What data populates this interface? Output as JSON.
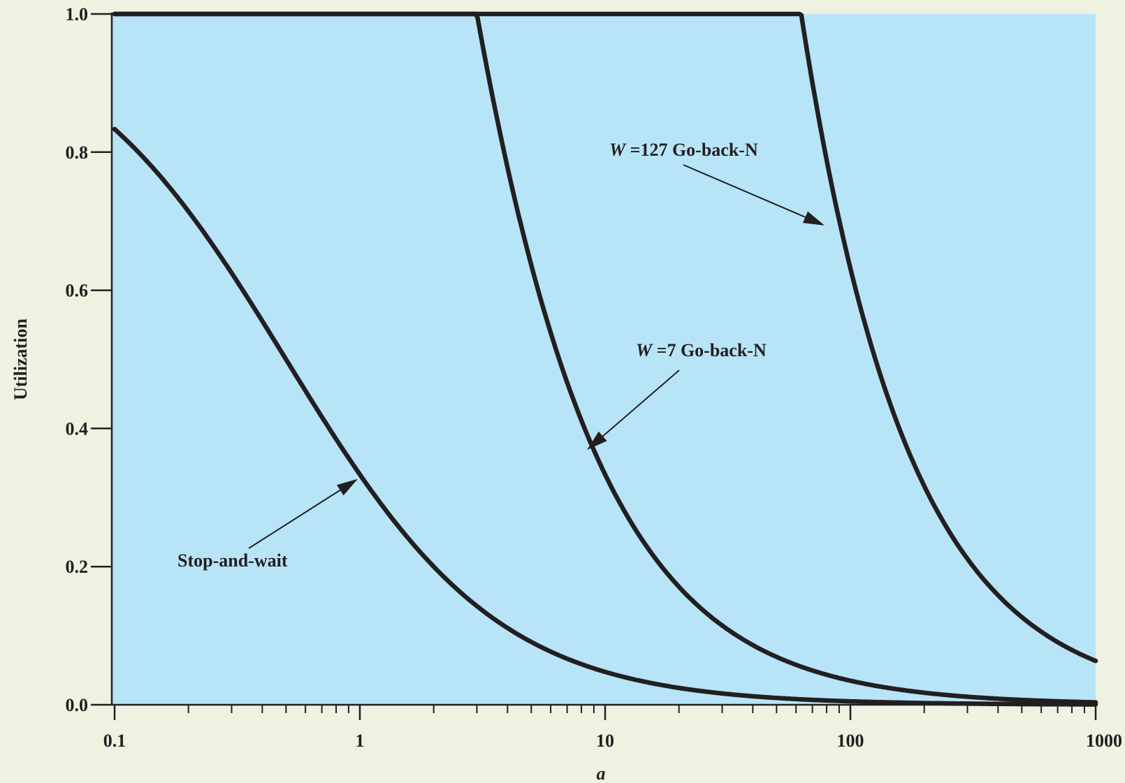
{
  "chart_data": {
    "type": "line",
    "xscale": "log",
    "xlim": [
      0.1,
      1000
    ],
    "ylim": [
      0,
      1
    ],
    "xlabel": "a",
    "ylabel": "Utilization",
    "grid": false,
    "background": "#b8e4f8",
    "page_background": "#eef2e1",
    "line_color": "#231f20",
    "x_ticks": [
      {
        "value": 0.1,
        "label": "0.1"
      },
      {
        "value": 1,
        "label": "1"
      },
      {
        "value": 10,
        "label": "10"
      },
      {
        "value": 100,
        "label": "100"
      },
      {
        "value": 1000,
        "label": "1000"
      }
    ],
    "y_ticks": [
      {
        "value": 0,
        "label": "0.0"
      },
      {
        "value": 0.2,
        "label": "0.2"
      },
      {
        "value": 0.4,
        "label": "0.4"
      },
      {
        "value": 0.6,
        "label": "0.6"
      },
      {
        "value": 0.8,
        "label": "0.8"
      },
      {
        "value": 1.0,
        "label": "1.0"
      }
    ],
    "series": [
      {
        "key": "stop-and-wait",
        "formula": "stop_and_wait",
        "W": 1
      },
      {
        "key": "w7",
        "formula": "go_back_n",
        "W": 7
      },
      {
        "key": "w127",
        "formula": "go_back_n",
        "W": 127
      }
    ],
    "annotations": [
      {
        "key": "stop-and-wait",
        "text": "Stop-and-wait",
        "italic_prefix": "",
        "points_to": {
          "x": 1.0,
          "y": 0.333
        }
      },
      {
        "key": "w7",
        "text": " =7 Go-back-N",
        "italic_prefix": "W",
        "points_to": {
          "x": 8.6,
          "y": 0.375
        }
      },
      {
        "key": "w127",
        "text": " =127 Go-back-N",
        "italic_prefix": "W",
        "points_to": {
          "x": 80,
          "y": 0.7
        }
      }
    ]
  }
}
